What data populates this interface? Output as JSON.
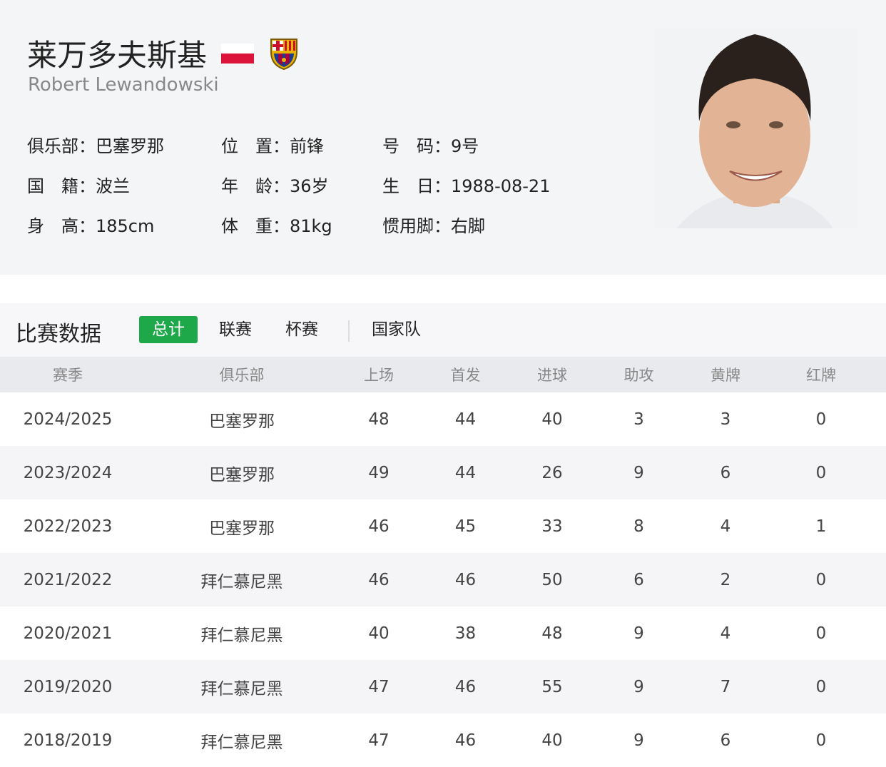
{
  "player": {
    "name_cn": "莱万多夫斯基",
    "name_en": "Robert Lewandowski",
    "flag_colors": [
      "#ffffff",
      "#dc143c"
    ],
    "info": [
      "俱乐部：巴塞罗那",
      "位　置：前锋",
      "号　码：9号",
      "国　籍：波兰",
      "年　龄：36岁",
      "生　日：1988-08-21",
      "身　高：185cm",
      "体　重：81kg",
      "惯用脚：右脚"
    ]
  },
  "stats": {
    "title": "比赛数据",
    "tabs": [
      "总计",
      "联赛",
      "杯赛",
      "国家队"
    ],
    "active_tab": "总计",
    "accent": "#1fa84a",
    "columns": [
      "赛季",
      "俱乐部",
      "上场",
      "首发",
      "进球",
      "助攻",
      "黄牌",
      "红牌"
    ],
    "rows": [
      [
        "2024/2025",
        "巴塞罗那",
        "48",
        "44",
        "40",
        "3",
        "3",
        "0"
      ],
      [
        "2023/2024",
        "巴塞罗那",
        "49",
        "44",
        "26",
        "9",
        "6",
        "0"
      ],
      [
        "2022/2023",
        "巴塞罗那",
        "46",
        "45",
        "33",
        "8",
        "4",
        "1"
      ],
      [
        "2021/2022",
        "拜仁慕尼黑",
        "46",
        "46",
        "50",
        "6",
        "2",
        "0"
      ],
      [
        "2020/2021",
        "拜仁慕尼黑",
        "40",
        "38",
        "48",
        "9",
        "4",
        "0"
      ],
      [
        "2019/2020",
        "拜仁慕尼黑",
        "47",
        "46",
        "55",
        "9",
        "7",
        "0"
      ],
      [
        "2018/2019",
        "拜仁慕尼黑",
        "47",
        "46",
        "40",
        "9",
        "6",
        "0"
      ]
    ]
  }
}
